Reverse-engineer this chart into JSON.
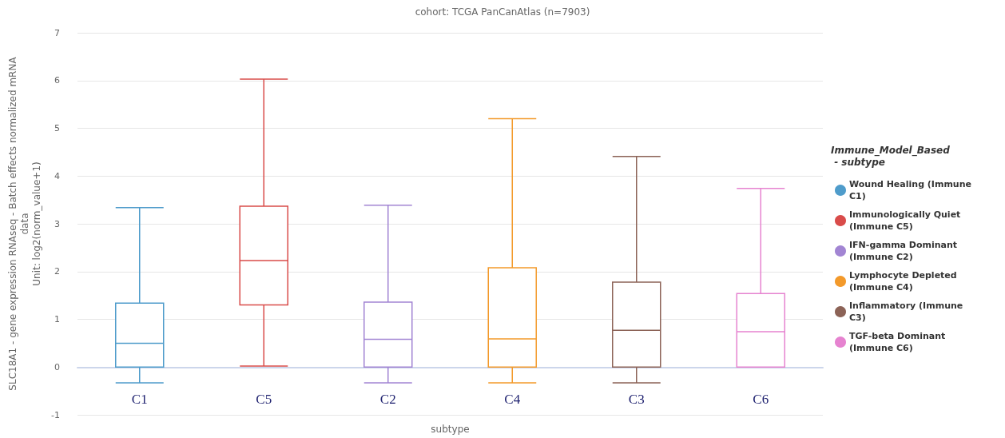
{
  "chart_data": {
    "type": "box",
    "title": "cohort: TCGA PanCanAtlas (n=7903)",
    "xlabel": "subtype",
    "ylabel": "SLC18A1 - gene expression RNAseq - Batch effects normalized mRNA\ndata\nUnit: log2(norm_value+1)",
    "legend_title": "Immune_Model_Based - subtype",
    "categories": [
      "C1",
      "C5",
      "C2",
      "C4",
      "C3",
      "C6"
    ],
    "ylim": [
      -1,
      7
    ],
    "yticks": [
      -1,
      0,
      1,
      2,
      3,
      4,
      5,
      6,
      7
    ],
    "grid": "y",
    "legend": "right",
    "series": [
      {
        "name": "Wound Healing (Immune C1)",
        "color": "#4f9ccb",
        "boxes": [
          {
            "low": -0.33,
            "q1": 0,
            "median": 0.5,
            "q3": 1.34,
            "high": 3.34
          },
          null,
          null,
          null,
          null,
          null
        ]
      },
      {
        "name": "Immunologically Quiet (Immune C5)",
        "color": "#d94c4a",
        "boxes": [
          null,
          {
            "low": 0.02,
            "q1": 1.3,
            "median": 2.23,
            "q3": 3.37,
            "high": 6.03
          },
          null,
          null,
          null,
          null
        ]
      },
      {
        "name": "IFN-gamma Dominant (Immune C2)",
        "color": "#a285d3",
        "boxes": [
          null,
          null,
          {
            "low": -0.33,
            "q1": 0,
            "median": 0.58,
            "q3": 1.36,
            "high": 3.39
          },
          null,
          null,
          null
        ]
      },
      {
        "name": "Lymphocyte Depleted (Immune C4)",
        "color": "#f39a2b",
        "boxes": [
          null,
          null,
          null,
          {
            "low": -0.33,
            "q1": 0,
            "median": 0.59,
            "q3": 2.08,
            "high": 5.2
          },
          null,
          null
        ]
      },
      {
        "name": "Inflammatory (Immune C3)",
        "color": "#8c6357",
        "boxes": [
          null,
          null,
          null,
          null,
          {
            "low": -0.33,
            "q1": 0,
            "median": 0.77,
            "q3": 1.78,
            "high": 4.41
          },
          null
        ]
      },
      {
        "name": "TGF-beta Dominant (Immune C6)",
        "color": "#e683d0",
        "boxes": [
          null,
          null,
          null,
          null,
          null,
          {
            "low": 0,
            "q1": 0,
            "median": 0.74,
            "q3": 1.54,
            "high": 3.74
          }
        ]
      }
    ]
  }
}
